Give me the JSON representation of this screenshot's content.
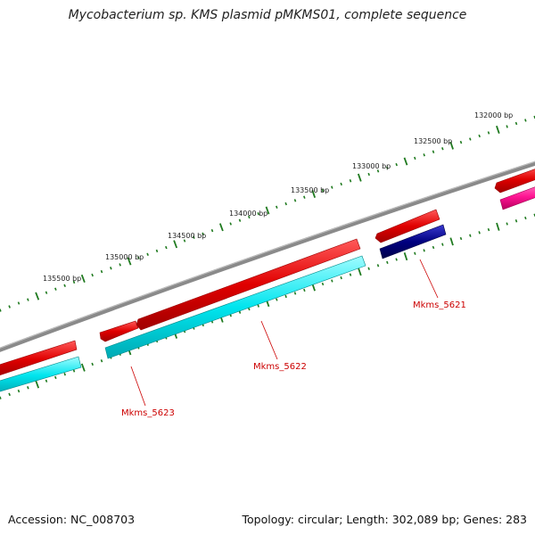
{
  "title": "Mycobacterium sp. KMS plasmid pMKMS01, complete sequence",
  "footer": {
    "accession": "Accession: NC_008703",
    "topology": "Topology: circular; Length: 302,089 bp; Genes: 283"
  },
  "ticks": [
    {
      "label": "132000 bp"
    },
    {
      "label": "132500 bp"
    },
    {
      "label": "133000 bp"
    },
    {
      "label": "133500 bp"
    },
    {
      "label": "134000 bp"
    },
    {
      "label": "134500 bp"
    },
    {
      "label": "135000 bp"
    },
    {
      "label": "135500 bp"
    }
  ],
  "genes": [
    {
      "label": "Mkms_5621"
    },
    {
      "label": "Mkms_5622"
    },
    {
      "label": "Mkms_5623"
    }
  ],
  "colors": {
    "backbone": "#8a8a8a",
    "cds_forward": "#e00000",
    "cds_reverse": "#00e5ee",
    "cds_dark": "#000080",
    "cds_pink": "#ff1493",
    "ticks": "#1f7a1f",
    "label": "#cc0000"
  }
}
